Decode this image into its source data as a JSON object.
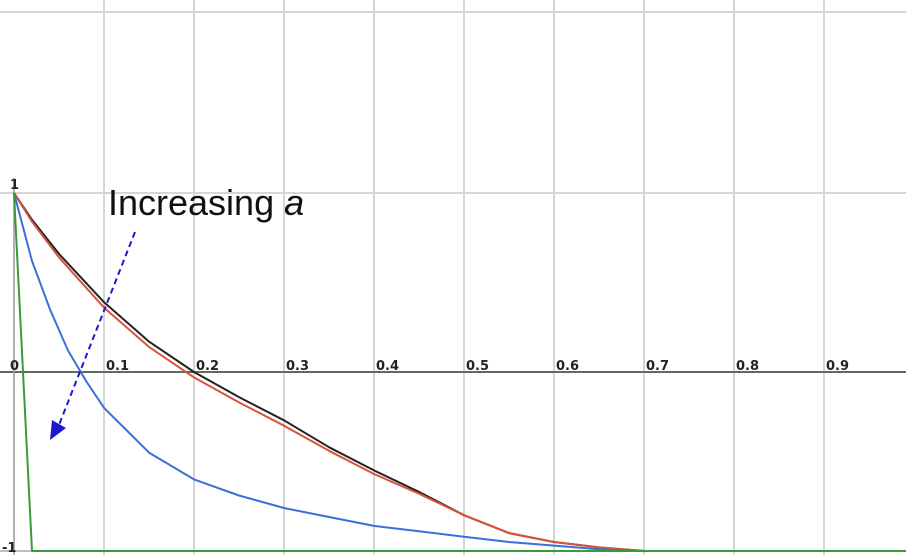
{
  "chart_data": {
    "type": "line",
    "title": "",
    "xlabel": "",
    "ylabel": "",
    "xlim": [
      0,
      1
    ],
    "ylim": [
      -1,
      1
    ],
    "grid": true,
    "x_ticks": [
      "0",
      "0.1",
      "0.2",
      "0.3",
      "0.4",
      "0.5",
      "0.6",
      "0.7",
      "0.8",
      "0.9"
    ],
    "y_ticks": [
      "1",
      "-1"
    ],
    "series": [
      {
        "color": "#222222",
        "x": [
          0,
          0.02,
          0.05,
          0.1,
          0.15,
          0.2,
          0.25,
          0.3,
          0.35,
          0.4,
          0.45,
          0.5,
          0.55,
          0.6,
          0.65,
          0.7,
          0.8,
          0.9,
          1.0
        ],
        "y": [
          1,
          0.85,
          0.66,
          0.39,
          0.17,
          0.0,
          -0.14,
          -0.27,
          -0.42,
          -0.55,
          -0.67,
          -0.8,
          -0.9,
          -0.95,
          -0.98,
          -1.0,
          -1.0,
          -1.0,
          -1.0
        ]
      },
      {
        "color": "#d9533b",
        "x": [
          0,
          0.02,
          0.05,
          0.1,
          0.15,
          0.2,
          0.25,
          0.3,
          0.35,
          0.4,
          0.45,
          0.5,
          0.55,
          0.6,
          0.65,
          0.7,
          0.8,
          0.9,
          1.0
        ],
        "y": [
          1,
          0.84,
          0.64,
          0.36,
          0.14,
          -0.03,
          -0.17,
          -0.3,
          -0.44,
          -0.57,
          -0.68,
          -0.8,
          -0.9,
          -0.95,
          -0.98,
          -1.0,
          -1.0,
          -1.0,
          -1.0
        ]
      },
      {
        "color": "#3b6fd9",
        "x": [
          0,
          0.02,
          0.04,
          0.06,
          0.08,
          0.1,
          0.15,
          0.2,
          0.25,
          0.3,
          0.35,
          0.4,
          0.45,
          0.5,
          0.55,
          0.6,
          0.65,
          0.7,
          0.8,
          0.9,
          1.0
        ],
        "y": [
          1,
          0.62,
          0.35,
          0.12,
          -0.05,
          -0.2,
          -0.45,
          -0.6,
          -0.69,
          -0.76,
          -0.81,
          -0.86,
          -0.89,
          -0.92,
          -0.95,
          -0.97,
          -0.99,
          -1.0,
          -1.0,
          -1.0,
          -1.0
        ]
      },
      {
        "color": "#3a9a3a",
        "x": [
          0,
          0.005,
          0.01,
          0.015,
          0.02,
          0.6,
          0.7,
          0.8,
          0.9,
          1.0
        ],
        "y": [
          1,
          0.5,
          0.0,
          -0.5,
          -1.0,
          -1.0,
          -1.0,
          -1.0,
          -1.0,
          -1.0
        ]
      }
    ],
    "annotation": {
      "text": "Increasing ",
      "italic_text": "a",
      "arrow_color": "#1a1acc"
    }
  }
}
